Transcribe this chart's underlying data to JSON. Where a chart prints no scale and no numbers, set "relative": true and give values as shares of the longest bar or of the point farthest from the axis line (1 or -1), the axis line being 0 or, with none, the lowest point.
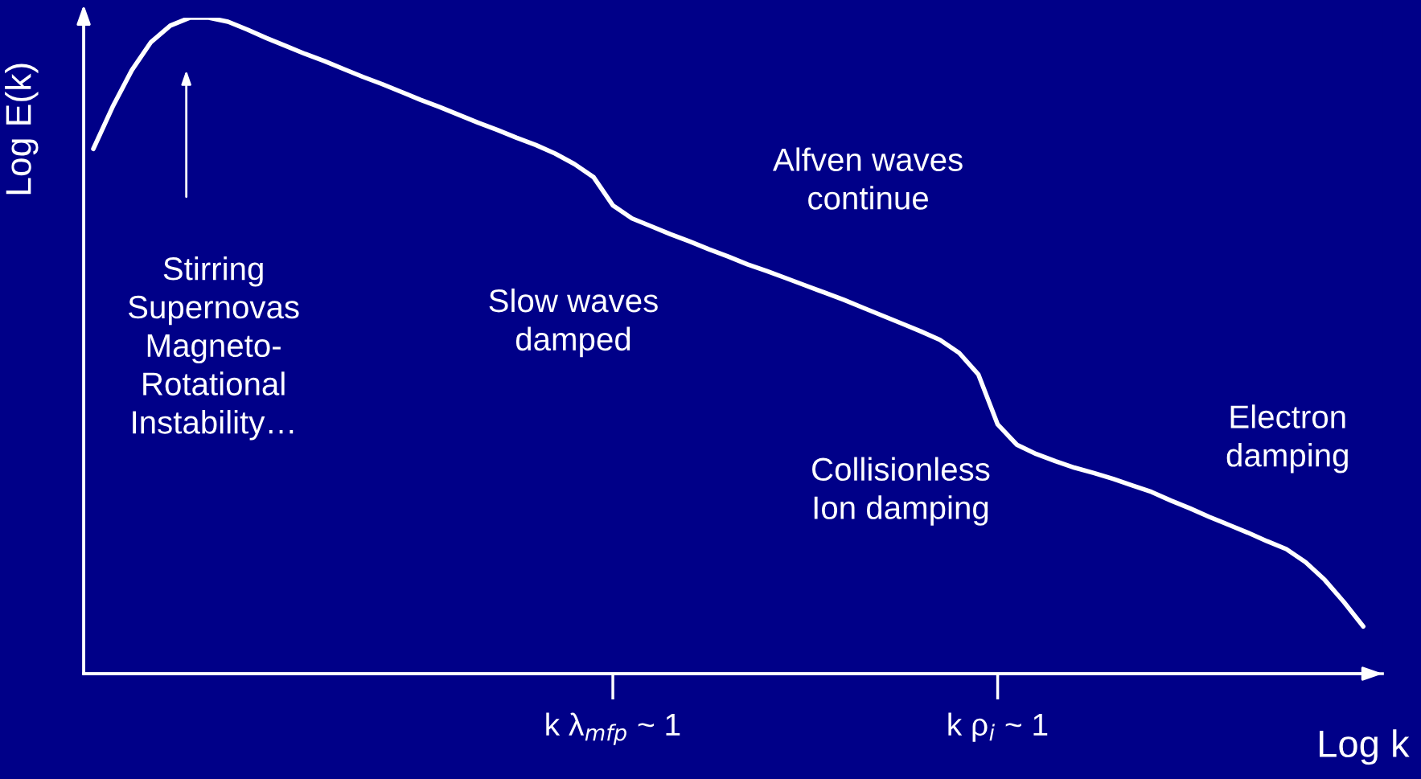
{
  "chart_data": {
    "type": "line",
    "relative": true,
    "xlabel": "Log k",
    "ylabel": "Log E(k)",
    "categories": [
      null,
      null,
      null,
      null,
      null,
      null,
      null,
      null,
      null,
      null,
      null,
      null,
      null,
      null,
      null,
      null,
      null,
      null,
      null,
      null,
      null,
      null,
      null,
      null,
      null,
      null,
      null,
      "k λ$_{mfp}$ ~ 1",
      null,
      null,
      null,
      null,
      null,
      null,
      null,
      null,
      null,
      null,
      null,
      null,
      null,
      null,
      null,
      null,
      null,
      null,
      null,
      "k ρ$_{i}$ ~ 1",
      null,
      null,
      null,
      null,
      null,
      null,
      null,
      null,
      null,
      null,
      null,
      null,
      null,
      null,
      null,
      null,
      null,
      null,
      null
    ],
    "tick_labels": "x",
    "grid": false,
    "legend": false,
    "marker": "none",
    "line_style": "solid",
    "series": [
      {
        "color": "#ffffff",
        "values": [
          0.8,
          0.864,
          0.92,
          0.963,
          0.988,
          1.0,
          1.0,
          0.994,
          0.982,
          0.969,
          0.957,
          0.945,
          0.934,
          0.922,
          0.91,
          0.899,
          0.887,
          0.875,
          0.864,
          0.852,
          0.84,
          0.829,
          0.817,
          0.806,
          0.793,
          0.777,
          0.757,
          0.714,
          0.694,
          0.682,
          0.67,
          0.659,
          0.647,
          0.636,
          0.624,
          0.614,
          0.603,
          0.592,
          0.581,
          0.57,
          0.558,
          0.546,
          0.534,
          0.522,
          0.509,
          0.489,
          0.456,
          0.38,
          0.349,
          0.335,
          0.324,
          0.314,
          0.306,
          0.297,
          0.287,
          0.277,
          0.264,
          0.252,
          0.239,
          0.227,
          0.215,
          0.202,
          0.19,
          0.17,
          0.143,
          0.109,
          0.072
        ]
      }
    ],
    "annotations": [
      "Stirring\nSupernovas\nMagneto-\nRotational\nInstability…",
      "Slow waves\ndamped",
      "Alfven waves\ncontinue",
      "Collisionless\nIon damping",
      "Electron\ndamping"
    ]
  }
}
